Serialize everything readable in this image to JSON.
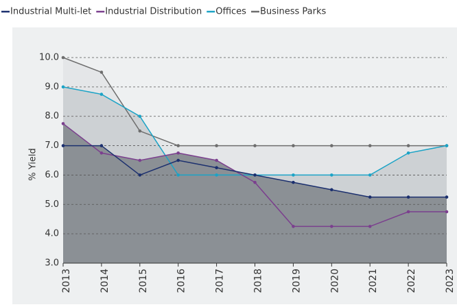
{
  "chart_data": {
    "type": "line",
    "y_label": "% Yield",
    "categories": [
      "2013",
      "2014",
      "2015",
      "2016",
      "2017",
      "2018",
      "2019",
      "2020",
      "2021",
      "2022",
      "2023"
    ],
    "series": [
      {
        "name": "Industrial Multi-let",
        "color": "#1b2f6e",
        "fill": "#8b9095",
        "values": [
          7.0,
          7.0,
          6.0,
          6.5,
          6.25,
          6.0,
          5.75,
          5.5,
          5.25,
          5.25,
          5.25
        ]
      },
      {
        "name": "Industrial Distribution",
        "color": "#7b3f8e",
        "fill": "#8b9095",
        "values": [
          7.75,
          6.75,
          6.5,
          6.75,
          6.5,
          5.75,
          4.25,
          4.25,
          4.25,
          4.75,
          4.75
        ]
      },
      {
        "name": "Offices",
        "color": "#1ba3c6",
        "fill": "#cdd1d4",
        "values": [
          9.0,
          8.75,
          8.0,
          6.0,
          6.0,
          6.0,
          6.0,
          6.0,
          6.0,
          6.75,
          7.0
        ]
      },
      {
        "name": "Business Parks",
        "color": "#6d6d6d",
        "fill": "#e4e6e8",
        "values": [
          10.0,
          9.5,
          7.5,
          7.0,
          7.0,
          7.0,
          7.0,
          7.0,
          7.0,
          7.0,
          7.0
        ]
      }
    ],
    "ylim": [
      3.0,
      10.0
    ],
    "yticks": [
      {
        "value": 3,
        "label": "3.0"
      },
      {
        "value": 4,
        "label": "4.0"
      },
      {
        "value": 5,
        "label": "5.0"
      },
      {
        "value": 6,
        "label": "6.0"
      },
      {
        "value": 7,
        "label": "7.0"
      },
      {
        "value": 8,
        "label": "8.0"
      },
      {
        "value": 9,
        "label": "9.0"
      },
      {
        "value": 10,
        "label": "10.0"
      }
    ],
    "grid": true,
    "legend": "top-left"
  }
}
